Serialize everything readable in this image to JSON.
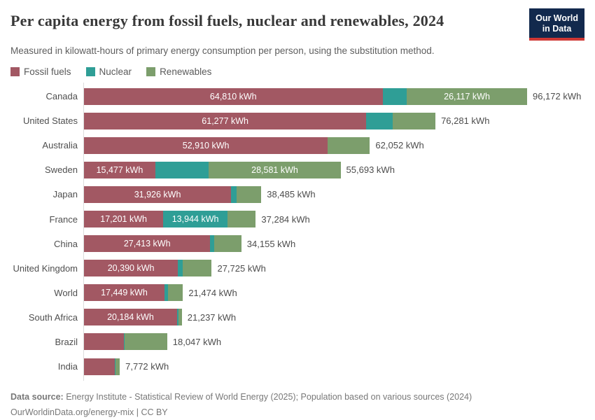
{
  "header": {
    "title": "Per capita energy from fossil fuels, nuclear and renewables, 2024",
    "subtitle": "Measured in kilowatt-hours of primary energy consumption per person, using the substitution method.",
    "logo": {
      "line1": "Our World",
      "line2": "in Data",
      "bg_color": "#12294d",
      "accent_color": "#cf3835"
    }
  },
  "legend": {
    "items": [
      {
        "label": "Fossil fuels",
        "color": "#a25863"
      },
      {
        "label": "Nuclear",
        "color": "#2f9e96"
      },
      {
        "label": "Renewables",
        "color": "#7c9e6c"
      }
    ]
  },
  "chart_data": {
    "type": "bar",
    "orientation": "horizontal",
    "stacked": true,
    "unit": "kWh",
    "xlim": [
      0,
      96172
    ],
    "grid": false,
    "series_names": [
      "Fossil fuels",
      "Nuclear",
      "Renewables"
    ],
    "rows": [
      {
        "country": "Canada",
        "total": 96172,
        "total_label": "96,172 kWh",
        "segments": [
          {
            "name": "Fossil fuels",
            "value": 64810,
            "label": "64,810 kWh"
          },
          {
            "name": "Nuclear",
            "value": 5245,
            "label": ""
          },
          {
            "name": "Renewables",
            "value": 26117,
            "label": "26,117 kWh"
          }
        ]
      },
      {
        "country": "United States",
        "total": 76281,
        "total_label": "76,281 kWh",
        "segments": [
          {
            "name": "Fossil fuels",
            "value": 61277,
            "label": "61,277 kWh"
          },
          {
            "name": "Nuclear",
            "value": 5650,
            "label": ""
          },
          {
            "name": "Renewables",
            "value": 9354,
            "label": ""
          }
        ]
      },
      {
        "country": "Australia",
        "total": 62052,
        "total_label": "62,052 kWh",
        "segments": [
          {
            "name": "Fossil fuels",
            "value": 52910,
            "label": "52,910 kWh"
          },
          {
            "name": "Nuclear",
            "value": 0,
            "label": ""
          },
          {
            "name": "Renewables",
            "value": 9142,
            "label": ""
          }
        ]
      },
      {
        "country": "Sweden",
        "total": 55693,
        "total_label": "55,693 kWh",
        "segments": [
          {
            "name": "Fossil fuels",
            "value": 15477,
            "label": "15,477 kWh"
          },
          {
            "name": "Nuclear",
            "value": 11635,
            "label": ""
          },
          {
            "name": "Renewables",
            "value": 28581,
            "label": "28,581 kWh"
          }
        ]
      },
      {
        "country": "Japan",
        "total": 38485,
        "total_label": "38,485 kWh",
        "segments": [
          {
            "name": "Fossil fuels",
            "value": 31926,
            "label": "31,926 kWh"
          },
          {
            "name": "Nuclear",
            "value": 1200,
            "label": ""
          },
          {
            "name": "Renewables",
            "value": 5359,
            "label": ""
          }
        ]
      },
      {
        "country": "France",
        "total": 37284,
        "total_label": "37,284 kWh",
        "segments": [
          {
            "name": "Fossil fuels",
            "value": 17201,
            "label": "17,201 kWh"
          },
          {
            "name": "Nuclear",
            "value": 13944,
            "label": "13,944 kWh"
          },
          {
            "name": "Renewables",
            "value": 6139,
            "label": ""
          }
        ]
      },
      {
        "country": "China",
        "total": 34155,
        "total_label": "34,155 kWh",
        "segments": [
          {
            "name": "Fossil fuels",
            "value": 27413,
            "label": "27,413 kWh"
          },
          {
            "name": "Nuclear",
            "value": 800,
            "label": ""
          },
          {
            "name": "Renewables",
            "value": 5942,
            "label": ""
          }
        ]
      },
      {
        "country": "United Kingdom",
        "total": 27725,
        "total_label": "27,725 kWh",
        "segments": [
          {
            "name": "Fossil fuels",
            "value": 20390,
            "label": "20,390 kWh"
          },
          {
            "name": "Nuclear",
            "value": 1100,
            "label": ""
          },
          {
            "name": "Renewables",
            "value": 6235,
            "label": ""
          }
        ]
      },
      {
        "country": "World",
        "total": 21474,
        "total_label": "21,474 kWh",
        "segments": [
          {
            "name": "Fossil fuels",
            "value": 17449,
            "label": "17,449 kWh"
          },
          {
            "name": "Nuclear",
            "value": 850,
            "label": ""
          },
          {
            "name": "Renewables",
            "value": 3175,
            "label": ""
          }
        ]
      },
      {
        "country": "South Africa",
        "total": 21237,
        "total_label": "21,237 kWh",
        "segments": [
          {
            "name": "Fossil fuels",
            "value": 20184,
            "label": "20,184 kWh"
          },
          {
            "name": "Nuclear",
            "value": 400,
            "label": ""
          },
          {
            "name": "Renewables",
            "value": 653,
            "label": ""
          }
        ]
      },
      {
        "country": "Brazil",
        "total": 18047,
        "total_label": "18,047 kWh",
        "segments": [
          {
            "name": "Fossil fuels",
            "value": 8600,
            "label": ""
          },
          {
            "name": "Nuclear",
            "value": 170,
            "label": ""
          },
          {
            "name": "Renewables",
            "value": 9277,
            "label": ""
          }
        ]
      },
      {
        "country": "India",
        "total": 7772,
        "total_label": "7,772 kWh",
        "segments": [
          {
            "name": "Fossil fuels",
            "value": 6700,
            "label": ""
          },
          {
            "name": "Nuclear",
            "value": 90,
            "label": ""
          },
          {
            "name": "Renewables",
            "value": 982,
            "label": ""
          }
        ]
      }
    ]
  },
  "footer": {
    "source_label": "Data source:",
    "source_text": " Energy Institute - Statistical Review of World Energy (2025); Population based on various sources (2024)",
    "url": "OurWorldinData.org/energy-mix",
    "separator": " | ",
    "license": "CC BY"
  }
}
